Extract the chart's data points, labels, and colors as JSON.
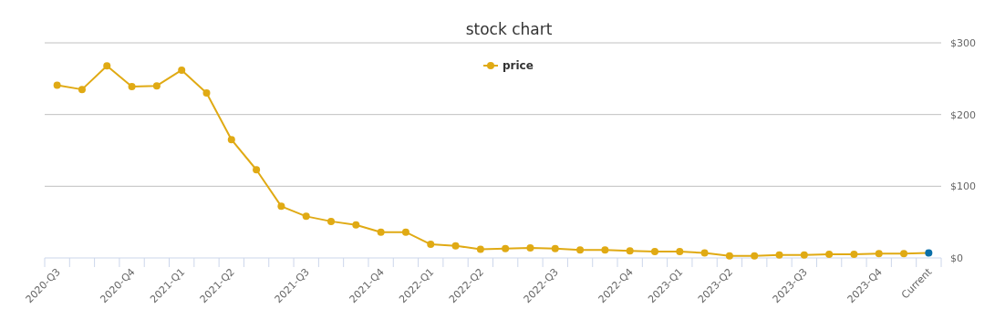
{
  "chart_data": {
    "type": "line",
    "title": "stock chart",
    "categories": [
      "2020-Q3",
      null,
      null,
      "2020-Q4",
      null,
      "2021-Q1",
      null,
      "2021-Q2",
      null,
      null,
      "2021-Q3",
      null,
      null,
      "2021-Q4",
      null,
      "2022-Q1",
      null,
      "2022-Q2",
      null,
      null,
      "2022-Q3",
      null,
      null,
      "2022-Q4",
      null,
      "2023-Q1",
      null,
      "2023-Q2",
      null,
      null,
      "2023-Q3",
      null,
      null,
      "2023-Q4",
      null,
      "Current"
    ],
    "series": [
      {
        "name": "price",
        "color": "#e0aa14",
        "colors": [
          "#e0aa14",
          "#e0aa14",
          "#e0aa14",
          "#e0aa14",
          "#e0aa14",
          "#e0aa14",
          "#e0aa14",
          "#e0aa14",
          "#e0aa14",
          "#e0aa14",
          "#e0aa14",
          "#e0aa14",
          "#e0aa14",
          "#e0aa14",
          "#e0aa14",
          "#e0aa14",
          "#e0aa14",
          "#e0aa14",
          "#e0aa14",
          "#e0aa14",
          "#e0aa14",
          "#e0aa14",
          "#e0aa14",
          "#e0aa14",
          "#e0aa14",
          "#e0aa14",
          "#e0aa14",
          "#e0aa14",
          "#e0aa14",
          "#e0aa14",
          "#e0aa14",
          "#e0aa14",
          "#e0aa14",
          "#e0aa14",
          "#e0aa14",
          "#0a6fa8"
        ],
        "values": [
          241,
          235,
          268,
          239,
          240,
          262,
          230,
          165,
          123,
          72,
          58,
          51,
          46,
          36,
          36,
          19,
          17,
          12,
          13,
          14,
          13,
          11,
          11,
          10,
          9,
          9,
          7,
          3,
          3,
          4,
          4,
          5,
          5,
          6,
          6,
          7
        ]
      }
    ],
    "ylim": [
      0,
      300
    ],
    "yticks": [
      {
        "value": 0,
        "label": "$0"
      },
      {
        "value": 100,
        "label": "$100"
      },
      {
        "value": 200,
        "label": "$200"
      },
      {
        "value": 300,
        "label": "$300"
      }
    ],
    "grid": "y",
    "legend": "top",
    "marker": "circle",
    "line_style": "solid"
  }
}
